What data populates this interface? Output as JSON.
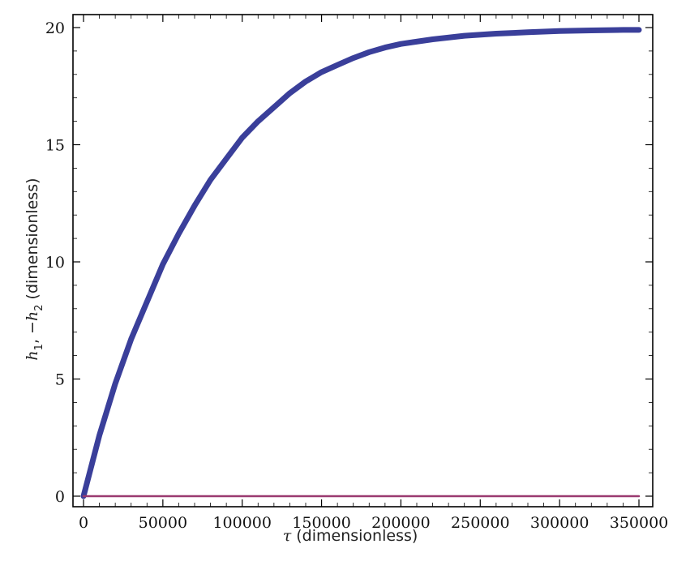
{
  "chart_data": {
    "type": "line",
    "xlabel_tau": "τ",
    "xlabel_rest": " (dimensionless)",
    "ylabel_h1": "h",
    "ylabel_sub1": "1",
    "ylabel_sep": ", −",
    "ylabel_h2": "h",
    "ylabel_sub2": "2",
    "ylabel_rest": "  (dimensionless)",
    "xlim": [
      0,
      350000
    ],
    "ylim": [
      0,
      20
    ],
    "x_ticks": [
      0,
      50000,
      100000,
      150000,
      200000,
      250000,
      300000,
      350000
    ],
    "y_ticks": [
      0,
      5,
      10,
      15,
      20
    ],
    "series": [
      {
        "color": "#3a3f9a",
        "x": [
          0,
          10000,
          20000,
          30000,
          40000,
          50000,
          60000,
          70000,
          80000,
          90000,
          100000,
          110000,
          120000,
          130000,
          140000,
          150000,
          160000,
          170000,
          180000,
          190000,
          200000,
          220000,
          240000,
          260000,
          280000,
          300000,
          320000,
          340000,
          350000
        ],
        "y": [
          0,
          2.6,
          4.8,
          6.7,
          8.3,
          9.9,
          11.2,
          12.4,
          13.5,
          14.4,
          15.3,
          16.0,
          16.6,
          17.2,
          17.7,
          18.1,
          18.4,
          18.7,
          18.95,
          19.15,
          19.3,
          19.5,
          19.65,
          19.74,
          19.8,
          19.85,
          19.88,
          19.9,
          19.9
        ]
      },
      {
        "color": "#9a3a70",
        "x": [
          0,
          350000
        ],
        "y": [
          0,
          0
        ]
      }
    ]
  }
}
